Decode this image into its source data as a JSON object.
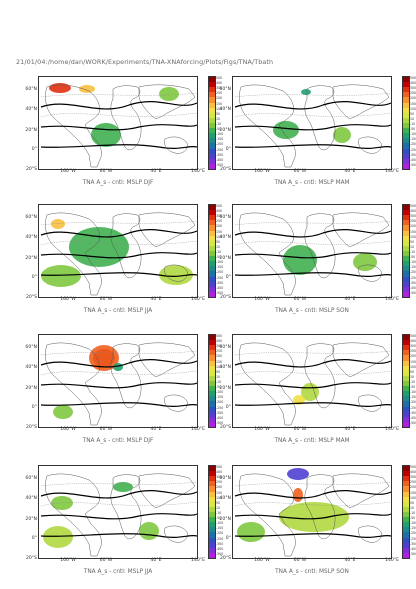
{
  "header": "21/01/04:/home/dan/WORK/Experiments/TNA-XNAforcing/Plots/Figs/TNA/Tbath",
  "lat_labels": [
    "60°N",
    "40°N",
    "20°N",
    "0°",
    "20°S"
  ],
  "lon_labels": [
    "160°W",
    "60°W",
    "40°E",
    "140°E"
  ],
  "colorbar_labels": [
    "500",
    "400",
    "300",
    "250",
    "200",
    "150",
    "100",
    "50",
    "10",
    "-10",
    "-50",
    "-100",
    "-150",
    "-200",
    "-250",
    "-300",
    "-400",
    "-500"
  ],
  "colorbar_colors": [
    "#8b0000",
    "#c00000",
    "#e03010",
    "#f06020",
    "#f89030",
    "#f8c040",
    "#f0e040",
    "#d8e840",
    "#b0d840",
    "#80c840",
    "#40b050",
    "#20a070",
    "#208a88",
    "#2070a8",
    "#3050c0",
    "#5040d0",
    "#8030d8",
    "#b020e0"
  ],
  "panels": [
    {
      "caption": "TNA A_s - cntl: MSLP DJF"
    },
    {
      "caption": "TNA A_s - cntl: MSLP MAM"
    },
    {
      "caption": "TNA A_s - cntl: MSLP JJA"
    },
    {
      "caption": "TNA A_s - cntl: MSLP SON"
    },
    {
      "caption": "TNA A_s - cntl: MSLP DJF"
    },
    {
      "caption": "TNA A_s - cntl: MSLP MAM"
    },
    {
      "caption": "TNA A_s - cntl: MSLP JJA"
    },
    {
      "caption": "TNA A_s - cntl: MSLP SON"
    }
  ]
}
